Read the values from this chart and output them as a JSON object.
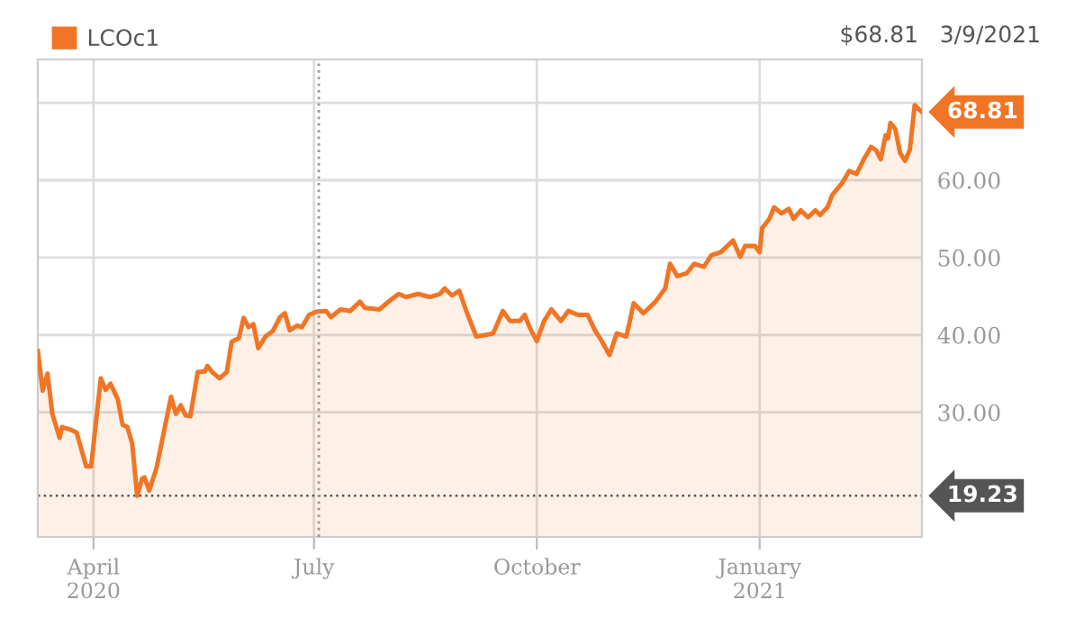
{
  "chart_data": {
    "type": "area",
    "x": [
      "2020-03-09",
      "2020-03-11",
      "2020-03-13",
      "2020-03-15",
      "2020-03-18",
      "2020-03-19",
      "2020-03-23",
      "2020-03-25",
      "2020-03-29",
      "2020-03-31",
      "2020-04-04",
      "2020-04-06",
      "2020-04-08",
      "2020-04-11",
      "2020-04-13",
      "2020-04-15",
      "2020-04-17",
      "2020-04-19",
      "2020-04-21",
      "2020-04-22",
      "2020-04-24",
      "2020-04-27",
      "2020-04-30",
      "2020-05-03",
      "2020-05-05",
      "2020-05-07",
      "2020-05-09",
      "2020-05-11",
      "2020-05-14",
      "2020-05-17",
      "2020-05-18",
      "2020-05-20",
      "2020-05-23",
      "2020-05-26",
      "2020-05-28",
      "2020-05-31",
      "2020-06-02",
      "2020-06-04",
      "2020-06-06",
      "2020-06-08",
      "2020-06-11",
      "2020-06-14",
      "2020-06-17",
      "2020-06-19",
      "2020-06-21",
      "2020-06-24",
      "2020-06-26",
      "2020-06-29",
      "2020-07-02",
      "2020-07-06",
      "2020-07-08",
      "2020-07-12",
      "2020-07-16",
      "2020-07-20",
      "2020-07-22",
      "2020-07-28",
      "2020-08-02",
      "2020-08-05",
      "2020-08-08",
      "2020-08-13",
      "2020-08-18",
      "2020-08-22",
      "2020-08-24",
      "2020-08-27",
      "2020-08-30",
      "2020-09-02",
      "2020-09-06",
      "2020-09-10",
      "2020-09-13",
      "2020-09-17",
      "2020-09-20",
      "2020-09-24",
      "2020-09-26",
      "2020-09-28",
      "2020-10-01",
      "2020-10-04",
      "2020-10-07",
      "2020-10-11",
      "2020-10-14",
      "2020-10-18",
      "2020-10-22",
      "2020-10-25",
      "2020-10-28",
      "2020-10-31",
      "2020-11-03",
      "2020-11-07",
      "2020-11-10",
      "2020-11-14",
      "2020-11-19",
      "2020-11-23",
      "2020-11-25",
      "2020-11-28",
      "2020-12-02",
      "2020-12-05",
      "2020-12-09",
      "2020-12-12",
      "2020-12-16",
      "2020-12-21",
      "2020-12-24",
      "2020-12-26",
      "2020-12-30",
      "2021-01-01",
      "2021-01-02",
      "2021-01-05",
      "2021-01-07",
      "2021-01-10",
      "2021-01-13",
      "2021-01-15",
      "2021-01-18",
      "2021-01-21",
      "2021-01-24",
      "2021-01-26",
      "2021-01-29",
      "2021-01-31",
      "2021-02-04",
      "2021-02-07",
      "2021-02-10",
      "2021-02-13",
      "2021-02-16",
      "2021-02-18",
      "2021-02-20",
      "2021-02-22",
      "2021-02-23",
      "2021-02-24",
      "2021-02-26",
      "2021-02-28",
      "2021-03-02",
      "2021-03-04",
      "2021-03-06",
      "2021-03-09"
    ],
    "series": [
      {
        "name": "LCOc1",
        "color": "#f07524",
        "values": [
          37.9,
          32.8,
          35.0,
          29.8,
          26.7,
          28.1,
          27.7,
          27.4,
          23.0,
          23.0,
          34.4,
          32.9,
          33.7,
          31.7,
          28.4,
          28.1,
          25.9,
          19.23,
          21.4,
          21.6,
          19.9,
          22.8,
          27.4,
          32.0,
          29.8,
          30.9,
          29.6,
          29.5,
          35.2,
          35.3,
          36.0,
          35.2,
          34.4,
          35.2,
          39.1,
          39.6,
          42.2,
          41.0,
          41.4,
          38.3,
          39.8,
          40.5,
          42.3,
          42.8,
          40.6,
          41.2,
          41.0,
          42.6,
          43.0,
          43.1,
          42.3,
          43.3,
          43.1,
          44.3,
          43.5,
          43.3,
          44.6,
          45.3,
          44.9,
          45.3,
          44.9,
          45.3,
          46.0,
          45.1,
          45.7,
          43.0,
          39.8,
          40.0,
          40.2,
          43.1,
          41.8,
          41.8,
          42.6,
          41.0,
          39.2,
          41.8,
          43.3,
          41.8,
          43.1,
          42.6,
          42.6,
          40.6,
          39.1,
          37.4,
          40.2,
          39.8,
          44.1,
          42.8,
          44.3,
          46.0,
          49.2,
          47.6,
          48.0,
          49.2,
          48.8,
          50.3,
          50.7,
          52.2,
          50.1,
          51.5,
          51.5,
          50.7,
          53.8,
          55.0,
          56.5,
          55.7,
          56.3,
          55.0,
          56.1,
          55.2,
          56.1,
          55.5,
          56.5,
          58.1,
          59.6,
          61.2,
          60.8,
          62.7,
          64.3,
          63.9,
          62.7,
          65.8,
          65.4,
          67.4,
          66.6,
          63.5,
          62.5,
          63.9,
          69.7,
          68.81
        ]
      }
    ],
    "xlim": [
      "2020-03-09",
      "2021-03-09"
    ],
    "xticks": [
      {
        "value": "2020-04-01",
        "label": "April\n2020"
      },
      {
        "value": "2020-07-01",
        "label": "July"
      },
      {
        "value": "2020-10-01",
        "label": "October"
      },
      {
        "value": "2021-01-01",
        "label": "January\n2021"
      }
    ],
    "ylim": [
      13.9,
      75.6
    ],
    "yticks": [
      {
        "value": 30,
        "label": "30.00"
      },
      {
        "value": 40,
        "label": "40.00"
      },
      {
        "value": 50,
        "label": "50.00"
      },
      {
        "value": 60,
        "label": "60.00"
      },
      {
        "value": 70,
        "label": null
      }
    ],
    "grid": true,
    "legend": "top left",
    "ref_lines": [
      {
        "axis": "y",
        "value": 19.23,
        "label": "19.23",
        "color": "#555555",
        "line_style": "dotted"
      },
      {
        "axis": "x",
        "value": "2020-07-03",
        "color": "#999999",
        "line_style": "dotted"
      }
    ],
    "annotations": [
      "$68.81",
      "3/9/2021",
      {
        "text": "68.81",
        "x": "2021-03-09",
        "y": 68.81
      }
    ]
  }
}
